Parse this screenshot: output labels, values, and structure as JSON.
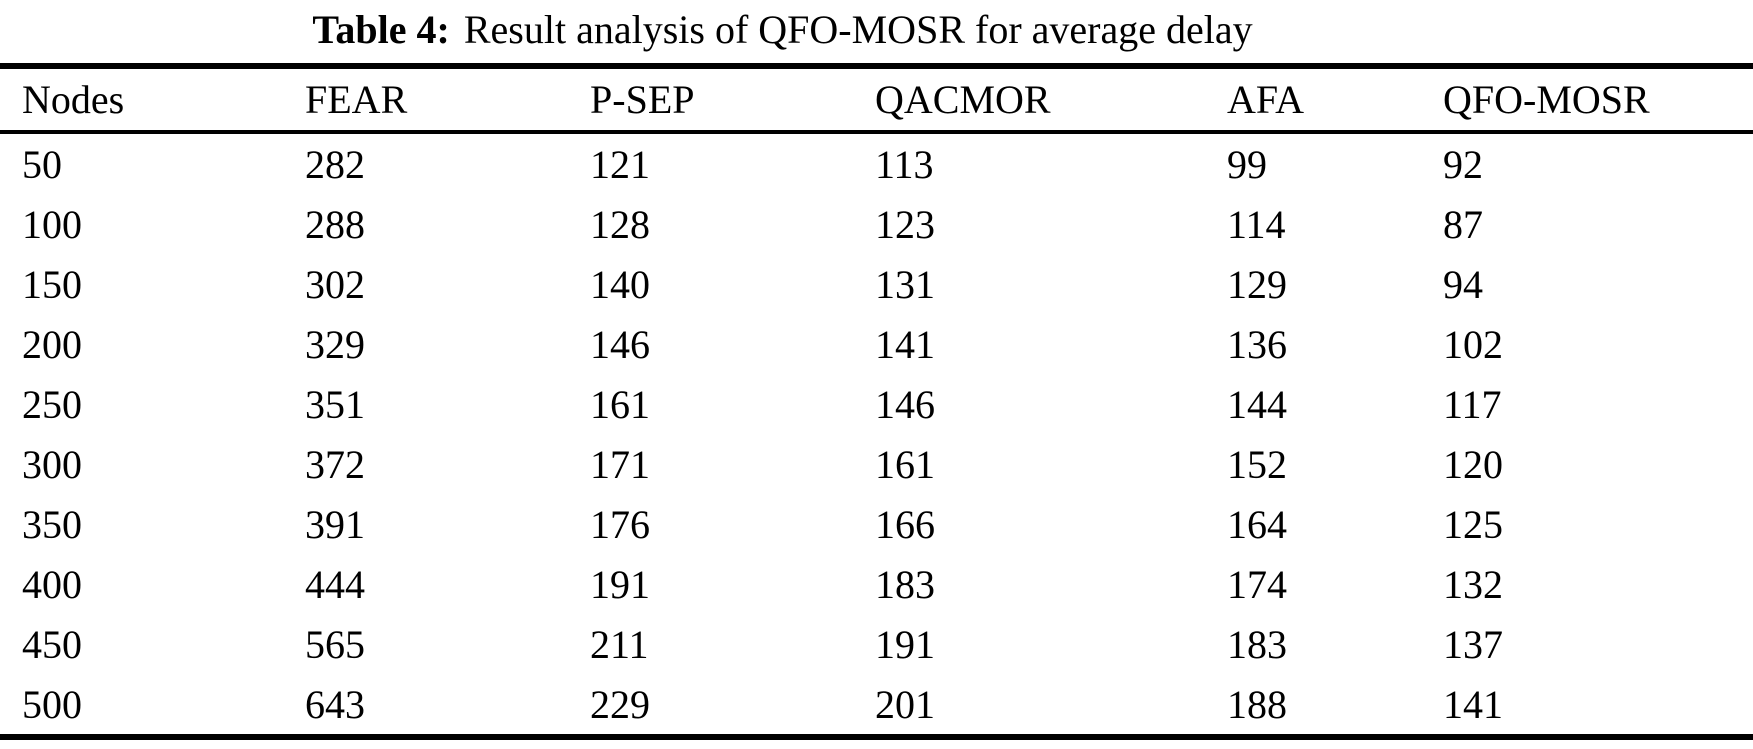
{
  "caption": {
    "label": "Table 4:",
    "text": "Result analysis of QFO-MOSR for average delay"
  },
  "table": {
    "columns": [
      "Nodes",
      "FEAR",
      "P-SEP",
      "QACMOR",
      "AFA",
      "QFO-MOSR"
    ],
    "rows": [
      [
        "50",
        "282",
        "121",
        "113",
        "99",
        "92"
      ],
      [
        "100",
        "288",
        "128",
        "123",
        "114",
        "87"
      ],
      [
        "150",
        "302",
        "140",
        "131",
        "129",
        "94"
      ],
      [
        "200",
        "329",
        "146",
        "141",
        "136",
        "102"
      ],
      [
        "250",
        "351",
        "161",
        "146",
        "144",
        "117"
      ],
      [
        "300",
        "372",
        "171",
        "161",
        "152",
        "120"
      ],
      [
        "350",
        "391",
        "176",
        "166",
        "164",
        "125"
      ],
      [
        "400",
        "444",
        "191",
        "183",
        "174",
        "132"
      ],
      [
        "450",
        "565",
        "211",
        "191",
        "183",
        "137"
      ],
      [
        "500",
        "643",
        "229",
        "201",
        "188",
        "141"
      ]
    ]
  },
  "chart_data": {
    "type": "table",
    "title": "Table 4: Result analysis of QFO-MOSR for average delay",
    "categories": [
      50,
      100,
      150,
      200,
      250,
      300,
      350,
      400,
      450,
      500
    ],
    "xlabel": "Nodes",
    "ylabel": "Average delay",
    "series": [
      {
        "name": "FEAR",
        "values": [
          282,
          288,
          302,
          329,
          351,
          372,
          391,
          444,
          565,
          643
        ]
      },
      {
        "name": "P-SEP",
        "values": [
          121,
          128,
          140,
          146,
          161,
          171,
          176,
          191,
          211,
          229
        ]
      },
      {
        "name": "QACMOR",
        "values": [
          113,
          123,
          131,
          141,
          146,
          161,
          166,
          183,
          191,
          201
        ]
      },
      {
        "name": "AFA",
        "values": [
          99,
          114,
          129,
          136,
          144,
          152,
          164,
          174,
          183,
          188
        ]
      },
      {
        "name": "QFO-MOSR",
        "values": [
          92,
          87,
          94,
          102,
          117,
          120,
          125,
          132,
          137,
          141
        ]
      }
    ]
  },
  "colors": {
    "text": "#000000",
    "background": "#ffffff",
    "rule": "#000000"
  }
}
